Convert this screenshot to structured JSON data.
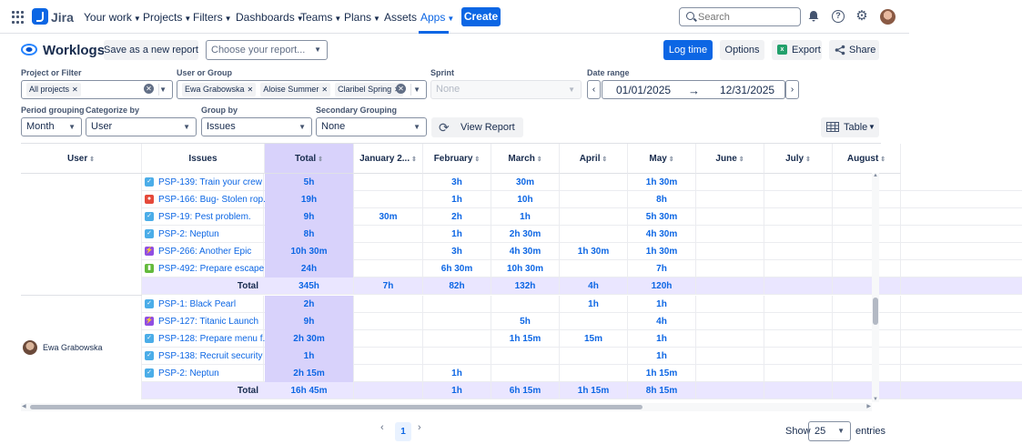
{
  "topnav": {
    "brand": "Jira",
    "items": [
      {
        "label": "Your work",
        "dropdown": true
      },
      {
        "label": "Projects",
        "dropdown": true
      },
      {
        "label": "Filters",
        "dropdown": true
      },
      {
        "label": "Dashboards",
        "dropdown": true
      },
      {
        "label": "Teams",
        "dropdown": true
      },
      {
        "label": "Plans",
        "dropdown": true
      },
      {
        "label": "Assets",
        "dropdown": false
      },
      {
        "label": "Apps",
        "dropdown": true,
        "active": true
      }
    ],
    "create": "Create",
    "search_placeholder": "Search"
  },
  "header": {
    "title": "Worklogs",
    "save_report": "Save as a new report",
    "report_placeholder": "Choose your report...",
    "log_time": "Log time",
    "options": "Options",
    "export": "Export",
    "share": "Share"
  },
  "filters": {
    "project_label": "Project or Filter",
    "project_tag": "All projects",
    "user_label": "User or Group",
    "user_tags": [
      "Ewa Grabowska",
      "Aloise Summer",
      "Claribel Spring"
    ],
    "sprint_label": "Sprint",
    "sprint_placeholder": "None",
    "date_label": "Date range",
    "date_from": "01/01/2025",
    "date_to": "12/31/2025",
    "period_label": "Period grouping",
    "period_value": "Month",
    "categorize_label": "Categorize by",
    "categorize_value": "User",
    "group_label": "Group by",
    "group_value": "Issues",
    "secondary_label": "Secondary Grouping",
    "secondary_value": "None",
    "view_report": "View Report",
    "view_mode": "Table"
  },
  "table": {
    "columns": [
      "User",
      "Issues",
      "Total",
      "January 2...",
      "February",
      "March",
      "April",
      "May",
      "June",
      "July",
      "August"
    ],
    "group1": {
      "rows": [
        {
          "type": "task",
          "issue": "PSP-139: Train your crew ...",
          "vals": [
            "5h",
            "",
            "3h",
            "30m",
            "",
            "1h 30m",
            "",
            "",
            ""
          ]
        },
        {
          "type": "bug",
          "issue": "PSP-166: Bug- Stolen rop...",
          "vals": [
            "19h",
            "",
            "1h",
            "10h",
            "",
            "8h",
            "",
            "",
            ""
          ]
        },
        {
          "type": "task",
          "issue": "PSP-19: Pest problem.",
          "vals": [
            "9h",
            "30m",
            "2h",
            "1h",
            "",
            "5h 30m",
            "",
            "",
            ""
          ]
        },
        {
          "type": "task",
          "issue": "PSP-2: Neptun",
          "vals": [
            "8h",
            "",
            "1h",
            "2h 30m",
            "",
            "4h 30m",
            "",
            "",
            ""
          ]
        },
        {
          "type": "epic",
          "issue": "PSP-266: Another Epic",
          "vals": [
            "10h 30m",
            "",
            "3h",
            "4h 30m",
            "1h 30m",
            "1h 30m",
            "",
            "",
            ""
          ]
        },
        {
          "type": "story",
          "issue": "PSP-492: Prepare escape ...",
          "vals": [
            "24h",
            "",
            "6h 30m",
            "10h 30m",
            "",
            "7h",
            "",
            "",
            ""
          ]
        }
      ],
      "total_label": "Total",
      "total": [
        "345h",
        "7h",
        "82h",
        "132h",
        "4h",
        "120h",
        "",
        "",
        ""
      ]
    },
    "group2": {
      "user": "Ewa Grabowska",
      "rows": [
        {
          "type": "task",
          "issue": "PSP-1: Black Pearl",
          "vals": [
            "2h",
            "",
            "",
            "",
            "1h",
            "1h",
            "",
            "",
            ""
          ]
        },
        {
          "type": "epic",
          "issue": "PSP-127: Titanic Launch",
          "vals": [
            "9h",
            "",
            "",
            "5h",
            "",
            "4h",
            "",
            "",
            ""
          ]
        },
        {
          "type": "task",
          "issue": "PSP-128: Prepare menu f...",
          "vals": [
            "2h 30m",
            "",
            "",
            "1h 15m",
            "15m",
            "1h",
            "",
            "",
            ""
          ]
        },
        {
          "type": "task",
          "issue": "PSP-138: Recruit security ...",
          "vals": [
            "1h",
            "",
            "",
            "",
            "",
            "1h",
            "",
            "",
            ""
          ]
        },
        {
          "type": "task",
          "issue": "PSP-2: Neptun",
          "vals": [
            "2h 15m",
            "",
            "1h",
            "",
            "",
            "1h 15m",
            "",
            "",
            ""
          ]
        }
      ],
      "total_label": "Total",
      "total": [
        "16h 45m",
        "",
        "1h",
        "6h 15m",
        "1h 15m",
        "8h 15m",
        "",
        "",
        ""
      ]
    }
  },
  "pagination": {
    "current": "1",
    "show_label": "Show",
    "page_size": "25",
    "entries_label": "entries"
  }
}
